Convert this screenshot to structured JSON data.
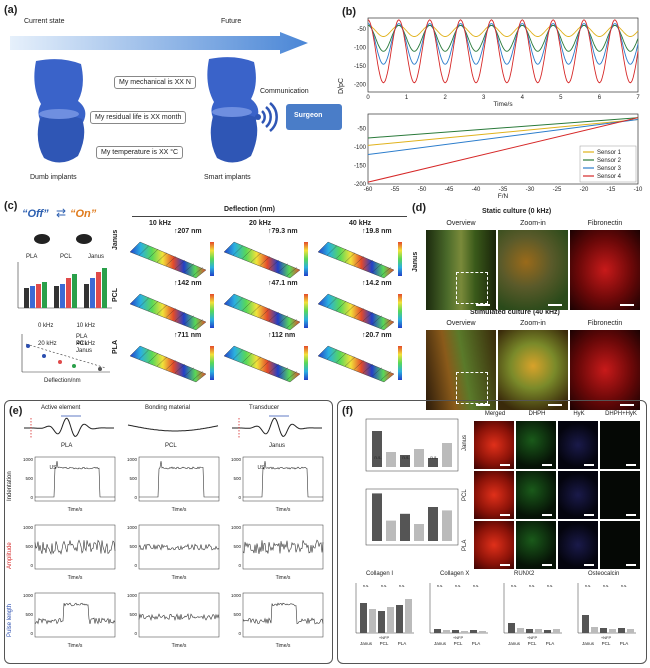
{
  "panel_labels": {
    "a": "(a)",
    "b": "(b)",
    "c": "(c)",
    "d": "(d)",
    "e": "(e)",
    "f": "(f)"
  },
  "panel_a": {
    "current_state": "Current state",
    "future": "Future",
    "communication": "Communication",
    "surgeon": "Surgeon",
    "bubbles": [
      "My mechanical is XX N",
      "My residual life is XX month",
      "My temperature is XX °C"
    ],
    "dumb_implants": "Dumb implants",
    "smart_implants": "Smart implants"
  },
  "panel_b": {
    "ylabel": "D/pC",
    "top_xlabel": "Time/s",
    "bottom_xlabel": "F/N",
    "colors": {
      "s1": "#e0b21c",
      "s2": "#2a7a3a",
      "s3": "#2c7dcc",
      "s4": "#d62828"
    }
  },
  "chart_data": [
    {
      "type": "line",
      "xlabel": "Time/s",
      "ylabel": "D/pC",
      "x_ticks": [
        0,
        1,
        2,
        3,
        4,
        5,
        6,
        7
      ],
      "y_ticks": [
        -50,
        -100,
        -150,
        -200
      ],
      "xlim": [
        0,
        7
      ],
      "ylim": [
        -220,
        -20
      ],
      "series": [
        {
          "color": "#e0b21c",
          "center": -55,
          "amplitude": 15,
          "period": 0.8
        },
        {
          "color": "#2a7a3a",
          "center": -75,
          "amplitude": 35,
          "period": 0.8
        },
        {
          "color": "#2c7dcc",
          "center": -90,
          "amplitude": 55,
          "period": 0.8
        },
        {
          "color": "#d62828",
          "center": -110,
          "amplitude": 85,
          "period": 0.8
        }
      ]
    },
    {
      "type": "line",
      "xlabel": "F/N",
      "ylabel": "D/pC",
      "x_ticks": [
        -60,
        -55,
        -50,
        -45,
        -40,
        -35,
        -30,
        -25,
        -20,
        -15,
        -10
      ],
      "y_ticks": [
        -50,
        -100,
        -150,
        -200
      ],
      "xlim": [
        -60,
        -10
      ],
      "ylim": [
        -200,
        -10
      ],
      "legend_position": "bottom-right",
      "series": [
        {
          "name": "Sensor 1",
          "color": "#e0b21c",
          "x": [
            -60,
            -10
          ],
          "y": [
            -95,
            -25
          ]
        },
        {
          "name": "Sensor 2",
          "color": "#2a7a3a",
          "x": [
            -60,
            -10
          ],
          "y": [
            -75,
            -20
          ]
        },
        {
          "name": "Sensor 3",
          "color": "#2c7dcc",
          "x": [
            -60,
            -10
          ],
          "y": [
            -120,
            -25
          ]
        },
        {
          "name": "Sensor 4",
          "color": "#d62828",
          "x": [
            -60,
            -10
          ],
          "y": [
            -195,
            -20
          ]
        }
      ]
    }
  ],
  "panel_c": {
    "off": "“Off”",
    "on": "“On”",
    "deflection_title": "Deflection (nm)",
    "freqs": [
      "10 kHz",
      "20 kHz",
      "40 kHz"
    ],
    "rows": [
      "Janus",
      "PCL",
      "PLA"
    ],
    "values": [
      [
        "↑207 nm",
        "↑79.3 nm",
        "↑19.8 nm"
      ],
      [
        "↑142 nm",
        "↑47.1 nm",
        "↑14.2 nm"
      ],
      [
        "↑711 nm",
        "↑112 nm",
        "↑20.7 nm"
      ]
    ],
    "groups": [
      "PLA",
      "PCL",
      "Janus"
    ],
    "legend_bar": [
      "0 kHz",
      "10 kHz",
      "20 kHz",
      "40 kHz"
    ],
    "legend_scatter": [
      "PLA",
      "PCL",
      "Janus"
    ],
    "scatter_xlabel": "Deflection/nm",
    "scatter_ylabel": "Normalized cell proliferation/%"
  },
  "panel_d": {
    "static_title": "Static culture (0 kHz)",
    "stim_title": "Stimulated culture (40 kHz)",
    "cols": [
      "Overview",
      "Zoom-in",
      "Fibronectin"
    ],
    "row_label": "Janus"
  },
  "panel_e": {
    "headers": [
      "Active element",
      "Bonding material",
      "Transducer"
    ],
    "names": [
      "PLA",
      "PCL",
      "Janus"
    ],
    "row_labels": [
      "Indentation",
      "Amplitude",
      "Pulse length"
    ],
    "ylabel": "Displacement/nm",
    "xlabel": "Time/s",
    "us": "US"
  },
  "panel_f": {
    "stain_headers": [
      "Merged",
      "DHPH",
      "HyK",
      "DHPH+HyK"
    ],
    "rows": [
      "Janus",
      "PCL",
      "PLA"
    ],
    "top_chart_ylabel": "DROVA-14 relative expression",
    "mid_chart_ylabel": "Cell number",
    "genes": [
      "Collagen I",
      "Collagen X",
      "RUNX2",
      "Osteocalcin"
    ],
    "ns": "n.s.",
    "nfp": "+NFP",
    "groups": [
      "Janus",
      "PCL",
      "PLA"
    ],
    "bottom_ylabel": "Relative expression"
  }
}
